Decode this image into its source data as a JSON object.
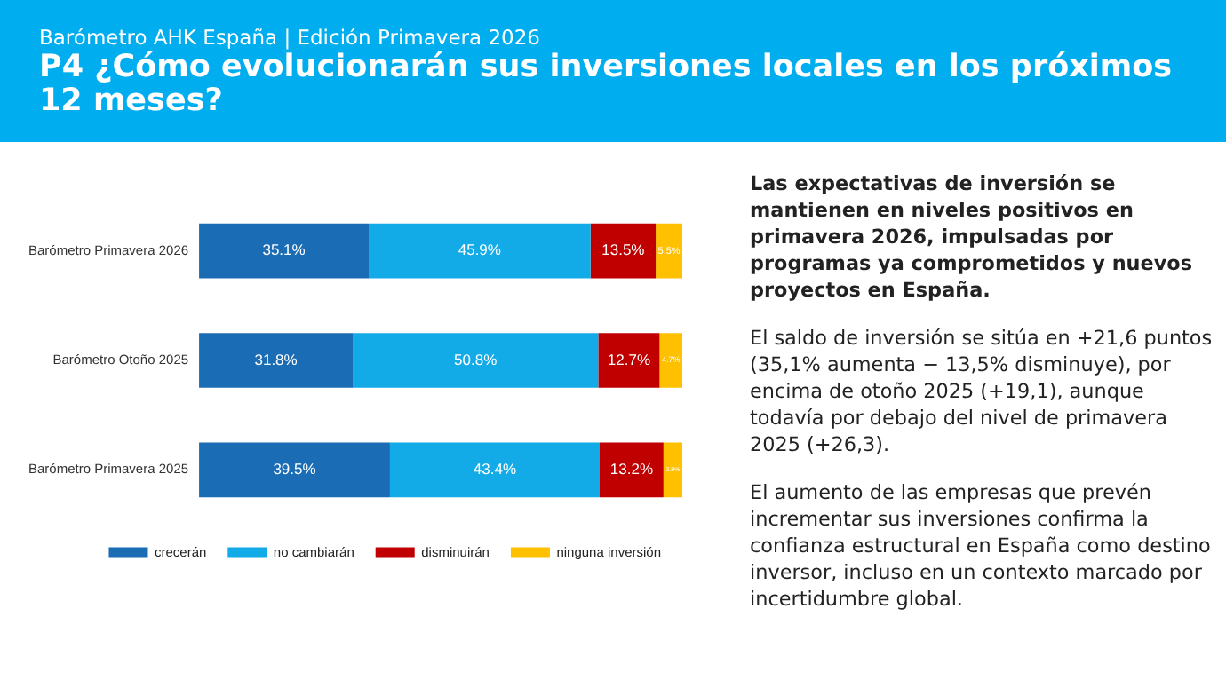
{
  "chart_data": {
    "type": "bar",
    "orientation": "horizontal",
    "stacked": true,
    "subtitle": "Barómetro AHK España | Edición Primavera 2026",
    "title": "P4 ¿Cómo evolucionarán sus inversiones locales en los próximos 12 meses?",
    "categories": [
      "Barómetro Primavera 2026",
      "Barómetro Otoño 2025",
      "Barómetro Primavera 2025"
    ],
    "series": [
      {
        "name": "crecerán",
        "color": "#1a6cb5",
        "values": [
          35.1,
          31.8,
          39.5
        ],
        "value_labels": [
          "35.1%",
          "31.8%",
          "39.5%"
        ]
      },
      {
        "name": "no cambiarán",
        "color": "#13aae8",
        "values": [
          45.9,
          50.8,
          43.4
        ],
        "value_labels": [
          "45.9%",
          "50.8%",
          "43.4%"
        ]
      },
      {
        "name": "disminuirán",
        "color": "#c00000",
        "values": [
          13.5,
          12.7,
          13.2
        ],
        "value_labels": [
          "13.5%",
          "12.7%",
          "13.2%"
        ]
      },
      {
        "name": "ninguna inversión",
        "color": "#ffc000",
        "values": [
          5.5,
          4.7,
          3.9
        ],
        "value_labels": [
          "5.5%",
          "4.7%",
          "3.9%"
        ]
      }
    ],
    "legend": "bottom",
    "grid": false,
    "annotations": [
      "Las expectativas de inversión se mantienen en niveles positivos en primavera 2026, impulsadas por programas ya comprometidos y nuevos proyectos en España.",
      "El saldo de inversión se sitúa en +21,6 puntos (35,1% aumenta − 13,5% disminuye), por encima de otoño 2025 (+19,1), aunque todavía por debajo del nivel de primavera 2025 (+26,3).",
      "El aumento de las empresas que prevén incrementar sus inversiones confirma la confianza estructural en España como destino inversor, incluso en un contexto marcado por incertidumbre global."
    ]
  }
}
